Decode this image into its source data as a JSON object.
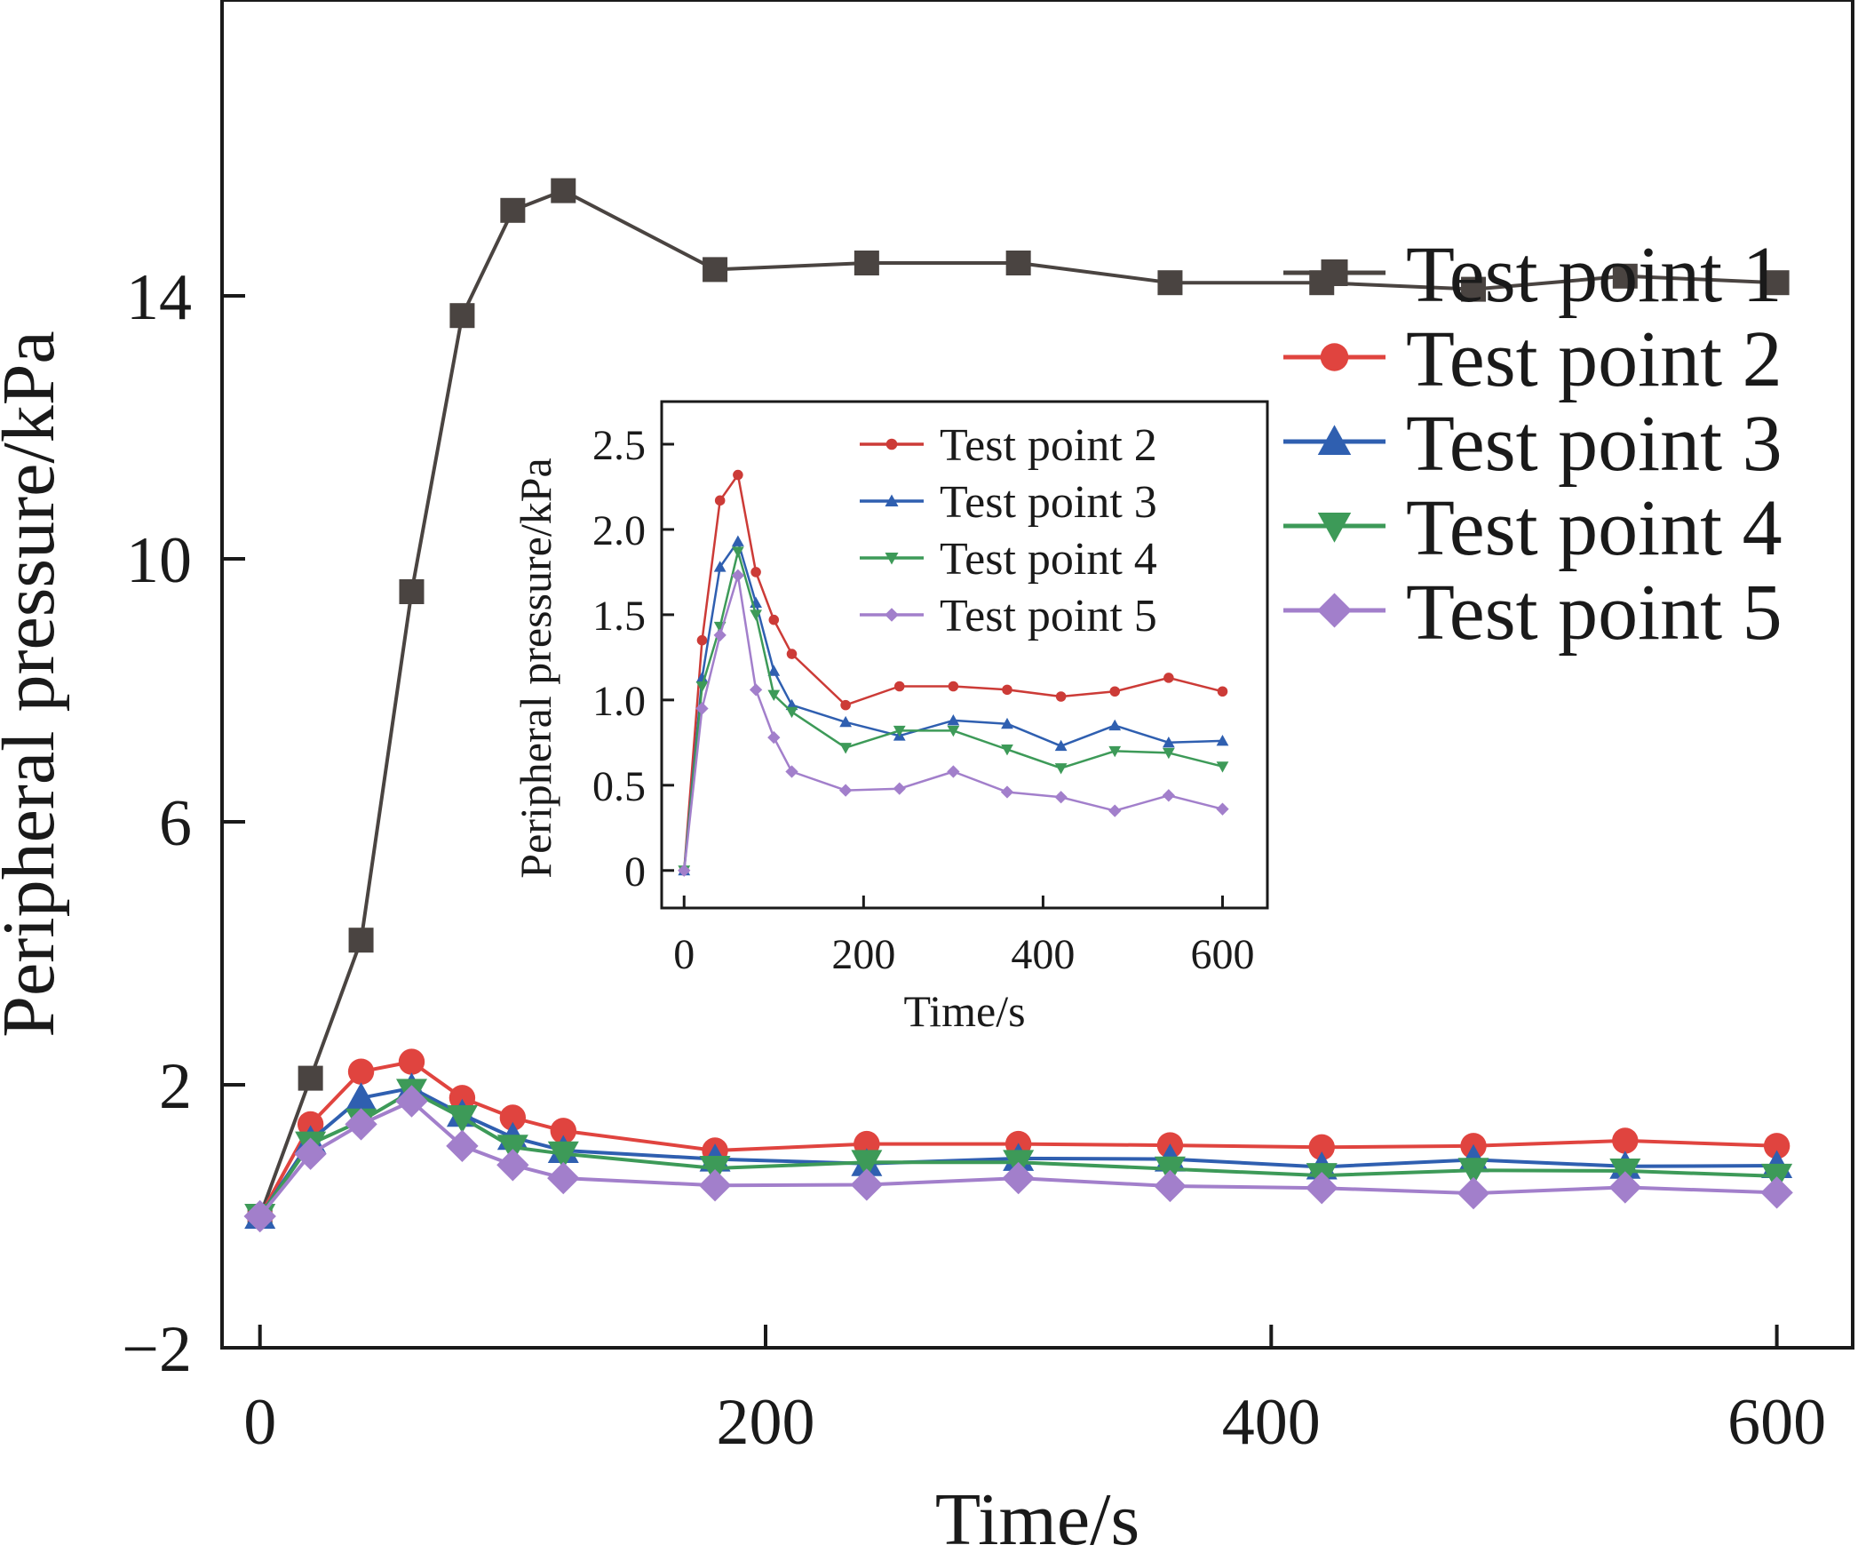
{
  "chart_data": [
    {
      "id": "main",
      "type": "line",
      "xlabel": "Time/s",
      "ylabel": "Peripheral pressure/kPa",
      "xlim": [
        -15,
        630
      ],
      "ylim": [
        -2,
        18.5
      ],
      "xticks": [
        0,
        200,
        400,
        600
      ],
      "yticks": [
        -2,
        2,
        6,
        10,
        14
      ],
      "ytick_labels": [
        "−2",
        "2",
        "6",
        "10",
        "14"
      ],
      "grid": false,
      "legend_position": "right",
      "x": [
        0,
        20,
        40,
        60,
        80,
        100,
        120,
        180,
        240,
        300,
        360,
        420,
        480,
        540,
        600
      ],
      "series": [
        {
          "name": "Test point 1",
          "color": "#4a4441",
          "marker": "square",
          "values": [
            0,
            2.1,
            4.2,
            9.5,
            13.7,
            15.3,
            15.6,
            14.4,
            14.5,
            14.5,
            14.2,
            14.2,
            14.1,
            14.3,
            14.2
          ]
        },
        {
          "name": "Test point 2",
          "color": "#e0443f",
          "marker": "circle",
          "values": [
            0,
            1.4,
            2.2,
            2.35,
            1.8,
            1.5,
            1.3,
            1.0,
            1.1,
            1.1,
            1.08,
            1.05,
            1.07,
            1.15,
            1.07
          ]
        },
        {
          "name": "Test point 3",
          "color": "#2f5fb0",
          "marker": "triangle-up",
          "values": [
            0,
            1.15,
            1.8,
            1.95,
            1.55,
            1.2,
            1.0,
            0.87,
            0.8,
            0.88,
            0.87,
            0.75,
            0.86,
            0.76,
            0.77
          ]
        },
        {
          "name": "Test point 4",
          "color": "#3d9a58",
          "marker": "triangle-down",
          "values": [
            0,
            1.1,
            1.45,
            1.9,
            1.5,
            1.05,
            0.95,
            0.73,
            0.82,
            0.82,
            0.72,
            0.62,
            0.7,
            0.69,
            0.61
          ]
        },
        {
          "name": "Test point 5",
          "color": "#a27fcb",
          "marker": "diamond",
          "values": [
            0,
            0.95,
            1.4,
            1.75,
            1.07,
            0.78,
            0.58,
            0.47,
            0.48,
            0.58,
            0.46,
            0.43,
            0.35,
            0.44,
            0.36
          ]
        }
      ]
    },
    {
      "id": "inset",
      "type": "line",
      "xlabel": "Time/s",
      "ylabel": "Peripheral pressure/kPa",
      "xlim": [
        -25,
        650
      ],
      "ylim": [
        -0.22,
        2.75
      ],
      "xticks": [
        0,
        200,
        400,
        600
      ],
      "yticks": [
        0,
        0.5,
        1.0,
        1.5,
        2.0,
        2.5
      ],
      "ytick_labels": [
        "0",
        "0.5",
        "1.0",
        "1.5",
        "2.0",
        "2.5"
      ],
      "grid": false,
      "legend_position": "top-right",
      "x": [
        0,
        20,
        40,
        60,
        80,
        100,
        120,
        180,
        240,
        300,
        360,
        420,
        480,
        540,
        600
      ],
      "series": [
        {
          "name": "Test point 2",
          "color": "#cc3b37",
          "marker": "circle",
          "values": [
            0,
            1.35,
            2.17,
            2.32,
            1.75,
            1.47,
            1.27,
            0.97,
            1.08,
            1.08,
            1.06,
            1.02,
            1.05,
            1.13,
            1.05
          ]
        },
        {
          "name": "Test point 3",
          "color": "#2f5fb0",
          "marker": "triangle-up",
          "values": [
            0,
            1.13,
            1.78,
            1.93,
            1.57,
            1.17,
            0.97,
            0.87,
            0.79,
            0.88,
            0.86,
            0.73,
            0.85,
            0.75,
            0.76
          ]
        },
        {
          "name": "Test point 4",
          "color": "#3d9a58",
          "marker": "triangle-down",
          "values": [
            0,
            1.08,
            1.43,
            1.87,
            1.5,
            1.03,
            0.93,
            0.72,
            0.82,
            0.82,
            0.71,
            0.6,
            0.7,
            0.69,
            0.61
          ]
        },
        {
          "name": "Test point 5",
          "color": "#a27fcb",
          "marker": "diamond",
          "values": [
            0,
            0.95,
            1.38,
            1.73,
            1.06,
            0.78,
            0.58,
            0.47,
            0.48,
            0.58,
            0.46,
            0.43,
            0.35,
            0.44,
            0.36
          ]
        }
      ]
    }
  ]
}
